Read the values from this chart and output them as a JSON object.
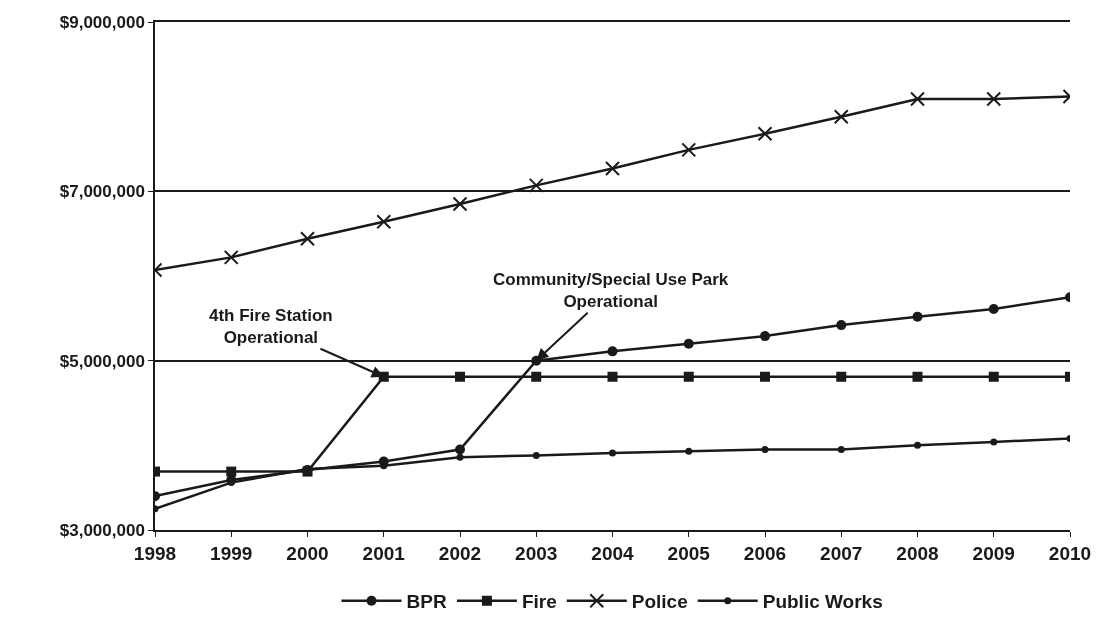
{
  "chart_data": {
    "type": "line",
    "x": [
      1998,
      1999,
      2000,
      2001,
      2002,
      2003,
      2004,
      2005,
      2006,
      2007,
      2008,
      2009,
      2010
    ],
    "series": [
      {
        "name": "BPR",
        "color": "#1a1a1a",
        "marker": "circle",
        "values": [
          3400000,
          3590000,
          3710000,
          3810000,
          3950000,
          5000000,
          5110000,
          5200000,
          5290000,
          5420000,
          5520000,
          5610000,
          5750000
        ]
      },
      {
        "name": "Fire",
        "color": "#1a1a1a",
        "marker": "square",
        "values": [
          3690000,
          3690000,
          3690000,
          4810000,
          4810000,
          4810000,
          4810000,
          4810000,
          4810000,
          4810000,
          4810000,
          4810000,
          4810000
        ]
      },
      {
        "name": "Police",
        "color": "#1a1a1a",
        "marker": "cross",
        "values": [
          6070000,
          6220000,
          6440000,
          6640000,
          6850000,
          7070000,
          7270000,
          7490000,
          7680000,
          7880000,
          8090000,
          8090000,
          8120000
        ]
      },
      {
        "name": "Public Works",
        "color": "#1a1a1a",
        "marker": "circle",
        "values": [
          3250000,
          3560000,
          3720000,
          3760000,
          3860000,
          3880000,
          3910000,
          3930000,
          3950000,
          3950000,
          4000000,
          4040000,
          4080000
        ]
      }
    ],
    "annotations": [
      {
        "text": "4th Fire Station\nOperational",
        "x": 2001,
        "y": 4810000
      },
      {
        "text": "Community/Special Use Park\nOperational",
        "x": 2003,
        "y": 5000000
      }
    ],
    "xlim": [
      1998,
      2010
    ],
    "xticks": [
      1998,
      1999,
      2000,
      2001,
      2002,
      2003,
      2004,
      2005,
      2006,
      2007,
      2008,
      2009,
      2010
    ],
    "ylim": [
      3000000,
      9000000
    ],
    "yticks": [
      {
        "value": 3000000,
        "label": "$3,000,000"
      },
      {
        "value": 5000000,
        "label": "$5,000,000"
      },
      {
        "value": 7000000,
        "label": "$7,000,000"
      },
      {
        "value": 9000000,
        "label": "$9,000,000"
      }
    ],
    "grid": "y",
    "legend": "bottom",
    "line_style": "solid"
  }
}
